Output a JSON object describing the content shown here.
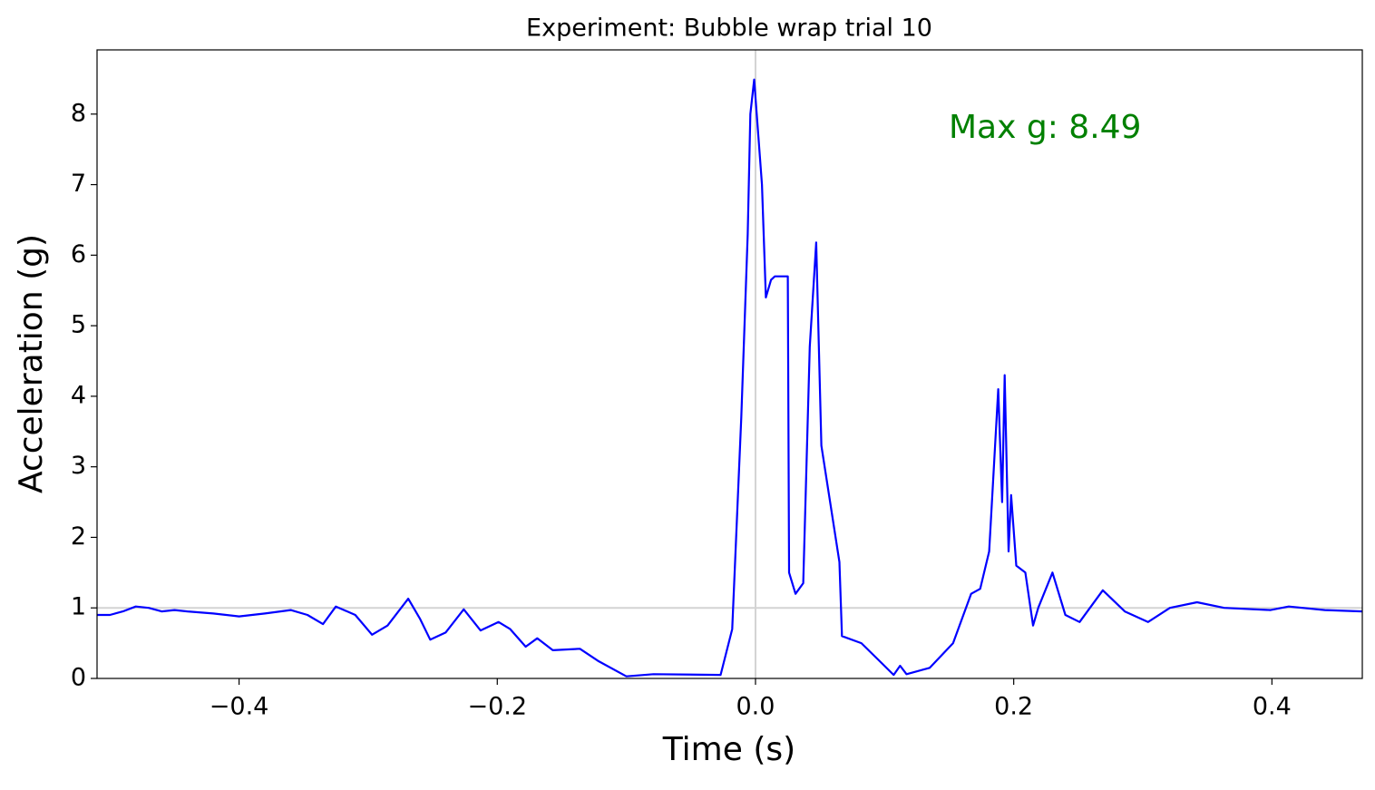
{
  "chart_data": {
    "type": "line",
    "title": "Experiment: Bubble wrap trial 10",
    "x_label": "Time (s)",
    "y_label": "Acceleration (g)",
    "annotation": "Max g: 8.49",
    "annotation_color": "#008000",
    "series": [
      {
        "name": "acceleration",
        "color": "#0000ff",
        "x": [
          -0.51,
          -0.5,
          -0.49,
          -0.48,
          -0.47,
          -0.46,
          -0.45,
          -0.44,
          -0.42,
          -0.4,
          -0.38,
          -0.36,
          -0.347,
          -0.335,
          -0.325,
          -0.31,
          -0.297,
          -0.285,
          -0.269,
          -0.26,
          -0.252,
          -0.24,
          -0.226,
          -0.213,
          -0.199,
          -0.19,
          -0.178,
          -0.169,
          -0.157,
          -0.136,
          -0.122,
          -0.1,
          -0.079,
          -0.027,
          -0.018,
          -0.011,
          -0.006,
          -0.004,
          -0.001,
          0.005,
          0.008,
          0.012,
          0.015,
          0.025,
          0.026,
          0.031,
          0.037,
          0.042,
          0.047,
          0.051,
          0.065,
          0.067,
          0.082,
          0.096,
          0.107,
          0.112,
          0.117,
          0.135,
          0.153,
          0.167,
          0.174,
          0.181,
          0.188,
          0.191,
          0.193,
          0.196,
          0.198,
          0.202,
          0.209,
          0.215,
          0.219,
          0.23,
          0.24,
          0.251,
          0.269,
          0.286,
          0.304,
          0.321,
          0.342,
          0.363,
          0.399,
          0.413,
          0.441,
          0.47
        ],
        "values": [
          0.9,
          0.9,
          0.95,
          1.02,
          1.0,
          0.95,
          0.97,
          0.95,
          0.92,
          0.88,
          0.92,
          0.97,
          0.9,
          0.77,
          1.02,
          0.9,
          0.62,
          0.75,
          1.13,
          0.85,
          0.55,
          0.65,
          0.98,
          0.68,
          0.8,
          0.7,
          0.45,
          0.57,
          0.4,
          0.42,
          0.25,
          0.03,
          0.06,
          0.05,
          0.7,
          3.7,
          6.3,
          8.0,
          8.49,
          7.0,
          5.4,
          5.65,
          5.7,
          5.7,
          1.5,
          1.2,
          1.35,
          4.7,
          6.18,
          3.3,
          1.65,
          0.6,
          0.5,
          0.25,
          0.05,
          0.18,
          0.06,
          0.15,
          0.5,
          1.2,
          1.27,
          1.8,
          4.1,
          2.5,
          4.3,
          1.8,
          2.6,
          1.6,
          1.5,
          0.75,
          1.0,
          1.5,
          0.9,
          0.8,
          1.25,
          0.95,
          0.8,
          1.0,
          1.08,
          1.0,
          0.97,
          1.02,
          0.97,
          0.95
        ]
      }
    ],
    "reference_lines": {
      "x": 0,
      "y": 1,
      "color": "#d3d3d3"
    },
    "xlim": [
      -0.51,
      0.47
    ],
    "ylim": [
      0,
      8.91
    ],
    "xticks": [
      {
        "value": -0.4,
        "label": "−0.4"
      },
      {
        "value": -0.2,
        "label": "−0.2"
      },
      {
        "value": 0,
        "label": "0.0"
      },
      0.2,
      0.4
    ],
    "yticks": [
      0,
      1,
      2,
      3,
      4,
      5,
      6,
      7,
      8
    ],
    "grid": false
  }
}
